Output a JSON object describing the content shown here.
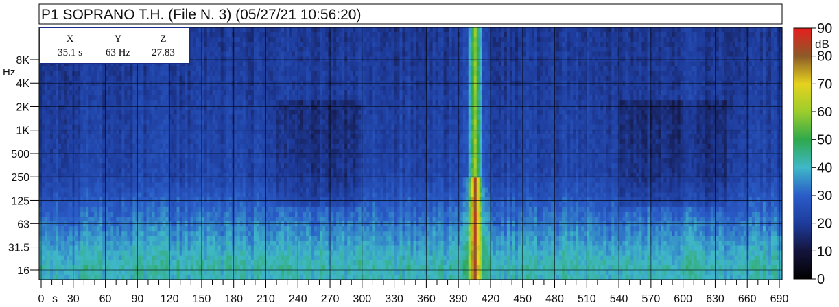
{
  "chart_data": {
    "type": "heatmap",
    "title": "P1 SOPRANO T.H.  (File N. 3) (05/27/21 10:56:20)",
    "x_unit": "s",
    "x_range": [
      0,
      690
    ],
    "x_ticks": [
      0,
      30,
      60,
      90,
      120,
      150,
      180,
      210,
      240,
      270,
      300,
      330,
      360,
      390,
      420,
      450,
      480,
      510,
      540,
      570,
      600,
      630,
      660,
      690
    ],
    "x_tick_labels": [
      "0",
      "30",
      "60",
      "90",
      "120",
      "150",
      "180",
      "210",
      "240",
      "270",
      "300",
      "330",
      "360",
      "390",
      "420",
      "450",
      "480",
      "510",
      "540",
      "570",
      "600",
      "630",
      "660",
      "690"
    ],
    "y_unit": "Hz",
    "y_scale": "log",
    "y_ticks": [
      16,
      31.5,
      63,
      125,
      250,
      500,
      1000,
      2000,
      4000,
      8000
    ],
    "y_tick_labels": [
      "16",
      "31.5",
      "63",
      "125",
      "250",
      "500",
      "1K",
      "2K",
      "4K",
      "8K"
    ],
    "colorbar": {
      "unit": "dB",
      "range": [
        0,
        90
      ],
      "ticks": [
        0,
        10,
        20,
        30,
        40,
        50,
        60,
        70,
        80,
        90
      ],
      "tick_labels": [
        "0",
        "10",
        "20",
        "30",
        "40",
        "50",
        "60",
        "70",
        "80",
        "90"
      ],
      "colors": [
        "#000000",
        "#14143c",
        "#1e3c9c",
        "#2a5cc8",
        "#3fb8c8",
        "#2fa84c",
        "#9ccd2c",
        "#e6d21e",
        "#8c5a28",
        "#e61e1e"
      ]
    },
    "cursor_readout": {
      "headers": [
        "X",
        "Y",
        "Z"
      ],
      "values": [
        "35.1 s",
        "63 Hz",
        "27.83"
      ]
    },
    "notable_feature": {
      "x": 405,
      "peak_level_db": 80
    },
    "grid": true
  }
}
